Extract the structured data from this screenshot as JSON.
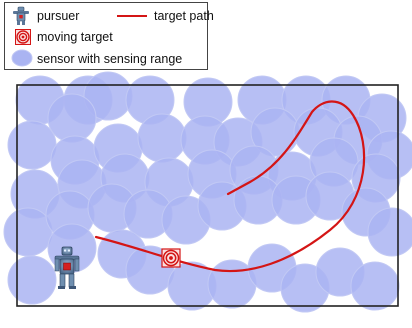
{
  "legend": {
    "pursuer_label": "pursuer",
    "target_path_label": "target path",
    "moving_target_label": "moving target",
    "sensor_label": "sensor with sensing range"
  },
  "colors": {
    "sensor_fill": "#aab4f2",
    "sensor_stroke": "#c2c9f4",
    "path": "#d41515",
    "boundary": "#222222",
    "target_ring": "#d41515",
    "robot_body": "#6f8fb0"
  },
  "icons": {
    "pursuer": "robot-icon",
    "target": "bullseye-target-icon",
    "sensor": "sensor-disc-icon"
  }
}
